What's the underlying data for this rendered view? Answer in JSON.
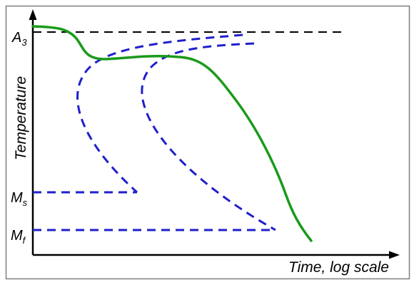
{
  "diagram": {
    "x_axis_label": "Time, log scale",
    "y_axis_label": "Temperature",
    "levels": {
      "a3": {
        "main": "A",
        "sub": "3"
      },
      "ms": {
        "main": "M",
        "sub": "s"
      },
      "mf": {
        "main": "M",
        "sub": "f"
      }
    },
    "colors": {
      "frame": "#7f7f7f",
      "axes": "#000000",
      "a3_line": "#000000",
      "transformation_curves": "#1f1fcc",
      "cooling_curve": "#1a9a1a"
    }
  }
}
